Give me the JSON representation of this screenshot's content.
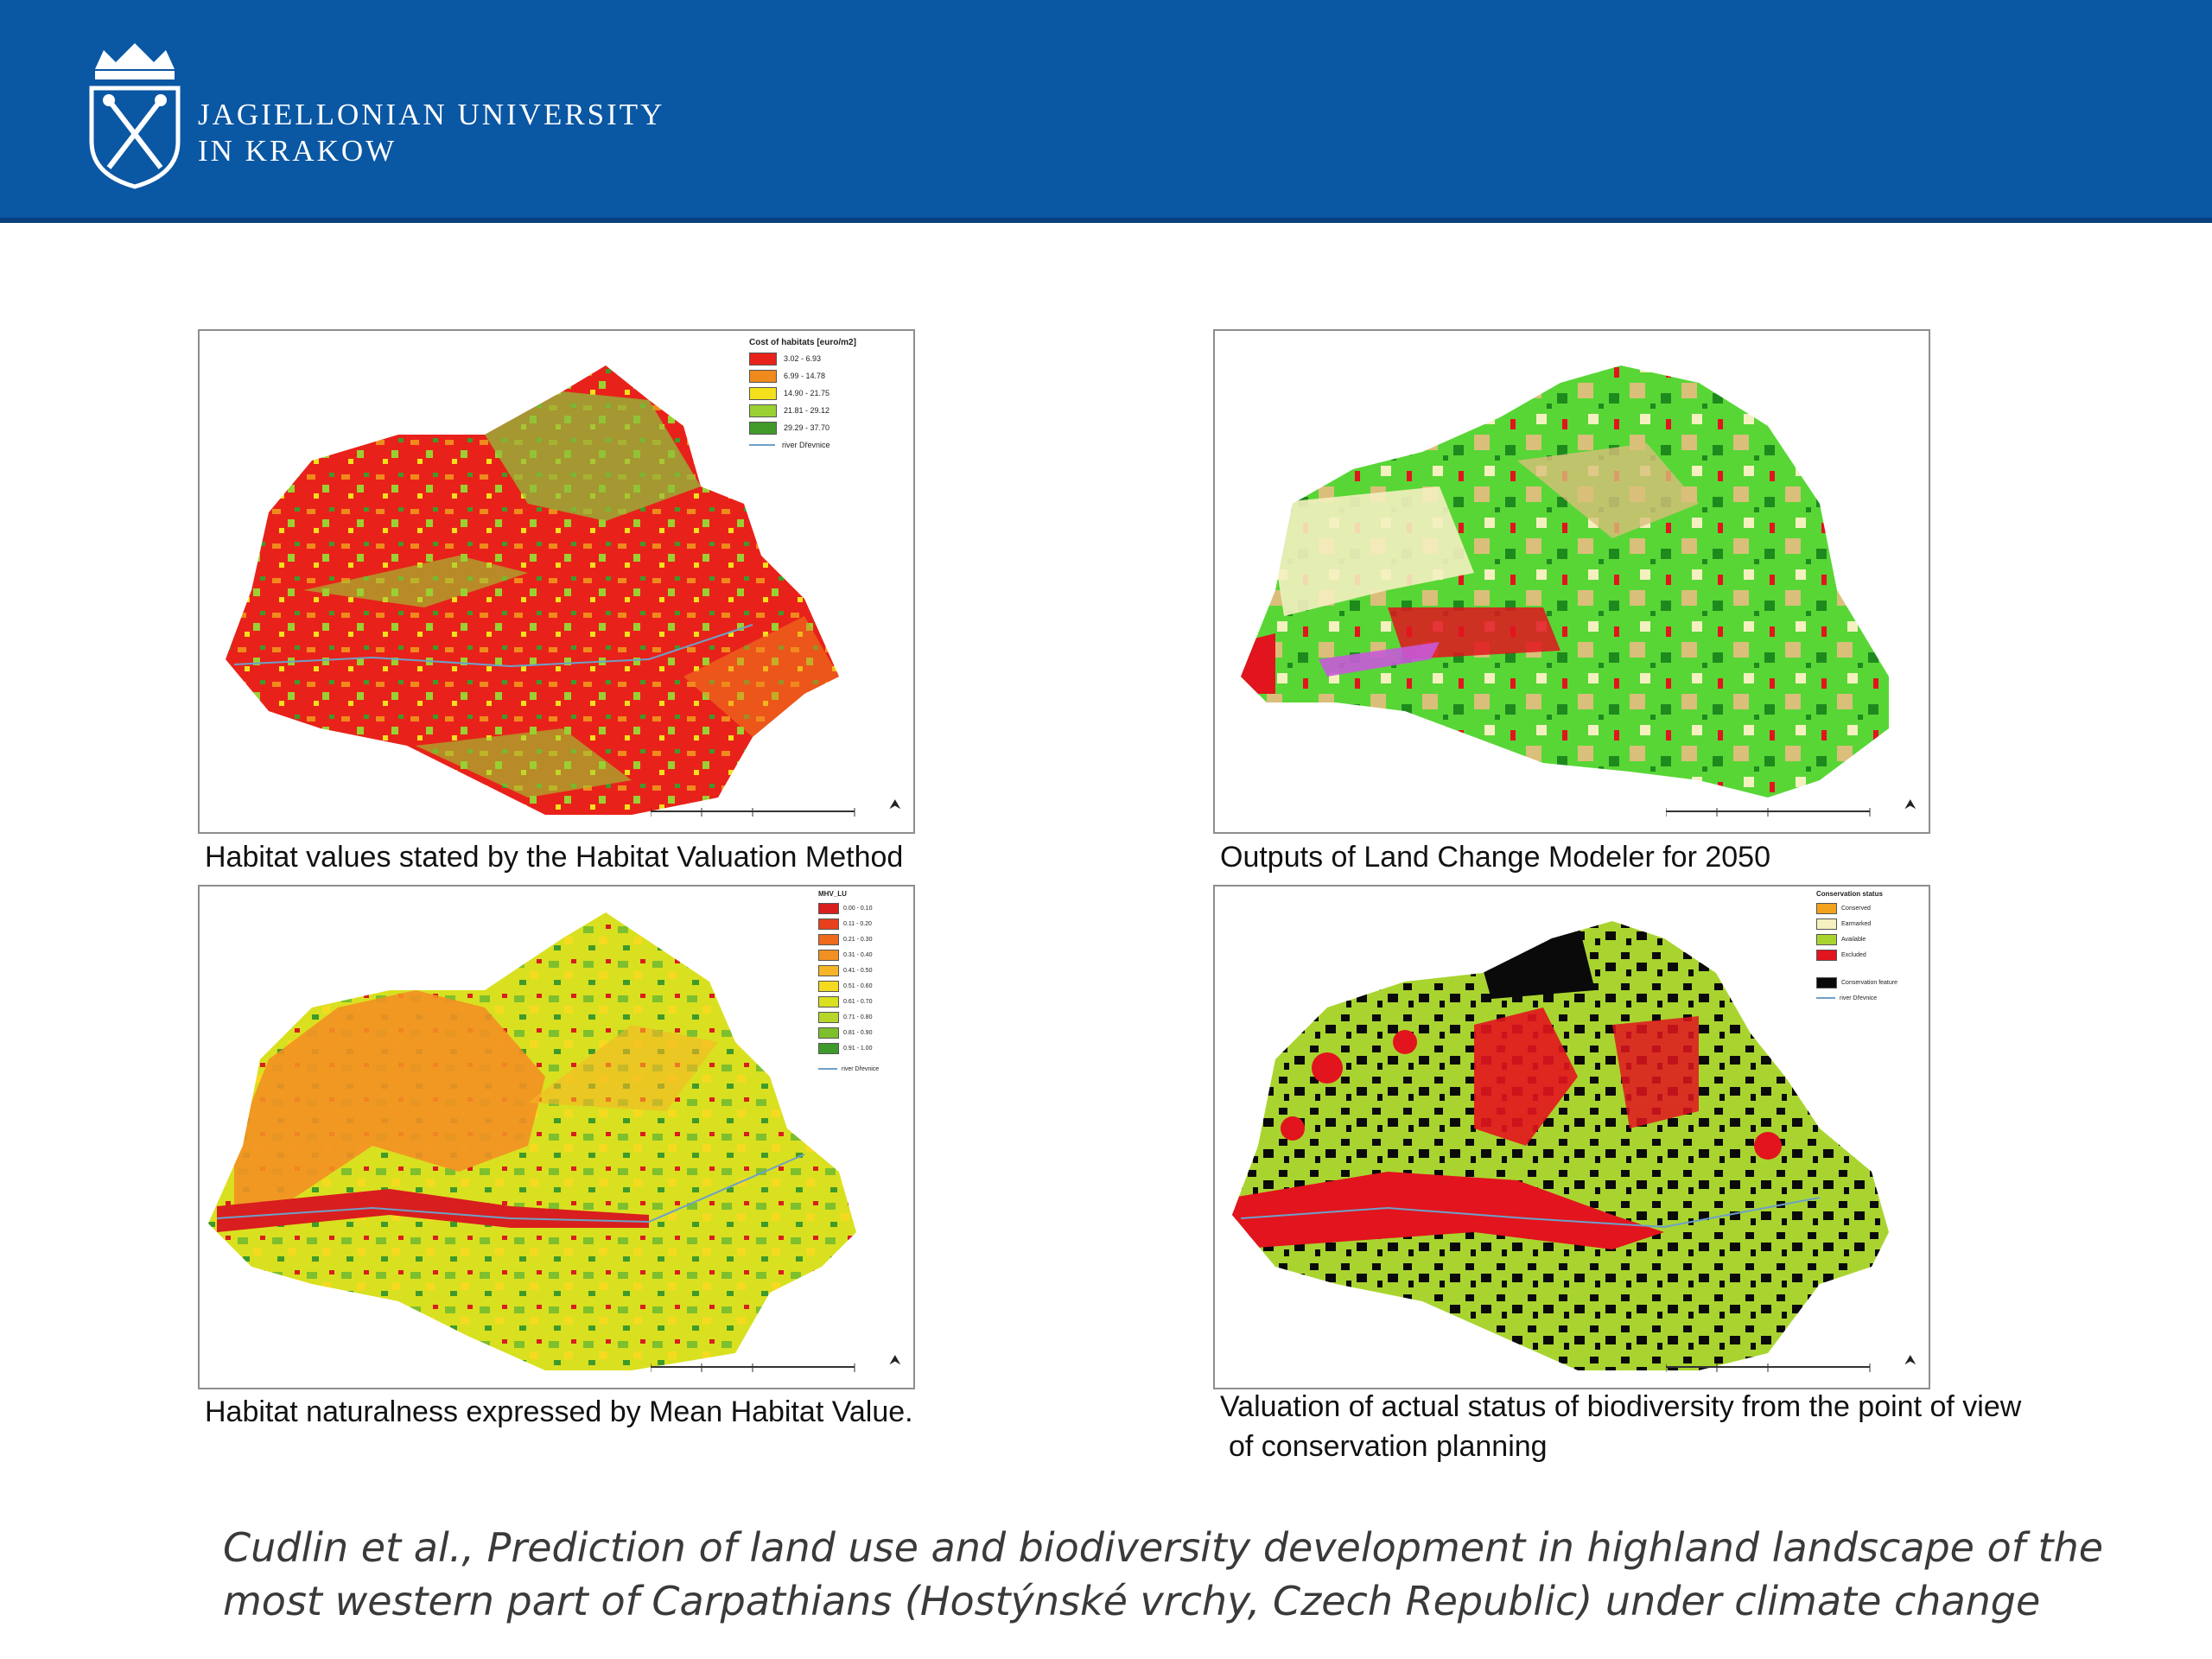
{
  "header": {
    "university_line1": "JAGIELLONIAN UNIVERSITY",
    "university_line2": "IN KRAKOW",
    "logo_icon": "crowned-shield-crossed-sceptres-icon",
    "colors": {
      "background": "#0a57a4",
      "text": "#ffffff"
    }
  },
  "maps": [
    {
      "caption": "Habitat values stated by the Habitat Valuation Method",
      "legend_title": "Cost of habitats [euro/m2]",
      "legend": [
        {
          "label": "3.02 - 6.93",
          "color": "#e8221a"
        },
        {
          "label": "6.99 - 14.78",
          "color": "#f08a1c"
        },
        {
          "label": "14.90 - 21.75",
          "color": "#f4e01c"
        },
        {
          "label": "21.81 - 29.12",
          "color": "#9ad032"
        },
        {
          "label": "29.29 - 37.70",
          "color": "#3f9a2a"
        }
      ],
      "legend_line": "river Dřevnice"
    },
    {
      "caption": "Outputs of Land Change Modeler for 2050",
      "colors": [
        "#58d636",
        "#f4f0c0",
        "#d9bf7a",
        "#1e8a1e",
        "#e2141e",
        "#c65ad8"
      ]
    },
    {
      "caption": "Habitat naturalness expressed by Mean Habitat Value.",
      "legend_title": "MHV_LU",
      "legend": [
        {
          "label": "0.00 - 0.10",
          "color": "#d81e1e"
        },
        {
          "label": "0.11 - 0.20",
          "color": "#e8401c"
        },
        {
          "label": "0.21 - 0.30",
          "color": "#ee6a1c"
        },
        {
          "label": "0.31 - 0.40",
          "color": "#f39022"
        },
        {
          "label": "0.41 - 0.50",
          "color": "#f6b526"
        },
        {
          "label": "0.51 - 0.60",
          "color": "#f5da20"
        },
        {
          "label": "0.61 - 0.70",
          "color": "#d9e020"
        },
        {
          "label": "0.71 - 0.80",
          "color": "#b6d62a"
        },
        {
          "label": "0.81 - 0.90",
          "color": "#7ebf2e"
        },
        {
          "label": "0.91 - 1.00",
          "color": "#3e9a2a"
        }
      ],
      "legend_line": "river Dřevnice"
    },
    {
      "caption_line1": "Valuation of actual status of biodiversity from the point of view",
      "caption_line2": "of conservation planning",
      "legend_title": "Conservation status",
      "legend": [
        {
          "label": "Conserved",
          "color": "#f2a21c"
        },
        {
          "label": "Earmarked",
          "color": "#f4f0c0"
        },
        {
          "label": "Available",
          "color": "#a9d430"
        },
        {
          "label": "Excluded",
          "color": "#e2141e"
        },
        {
          "label": "Conservation feature",
          "color": "#0a0a0a"
        }
      ],
      "legend_line": "river Dřevnice"
    }
  ],
  "citation": {
    "line1": "Cudlin et al., Prediction of land use and biodiversity development in highland landscape of the",
    "line2": "most western part of Carpathians (Hostýnské vrchy, Czech Republic) under climate change"
  }
}
